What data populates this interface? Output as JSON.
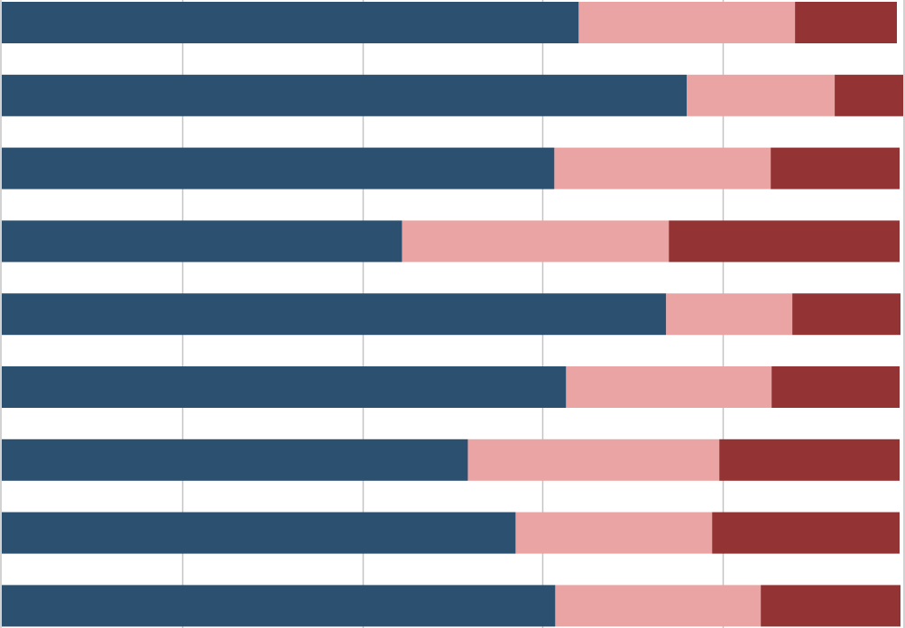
{
  "chart_data": {
    "type": "bar",
    "orientation": "horizontal",
    "stacked": true,
    "categories": [
      "",
      "",
      "",
      "",
      "",
      "",
      "",
      "",
      ""
    ],
    "series": [
      {
        "color": "#2b5070",
        "values": [
          64.0,
          76.0,
          61.3,
          44.4,
          73.7,
          62.6,
          51.7,
          57.0,
          61.4
        ]
      },
      {
        "color": "#eba4a4",
        "values": [
          24.0,
          16.4,
          24.0,
          29.6,
          14.0,
          22.8,
          27.9,
          21.8,
          22.8
        ]
      },
      {
        "color": "#943333",
        "values": [
          11.3,
          7.6,
          14.3,
          25.6,
          12.0,
          14.2,
          20.0,
          20.8,
          15.5
        ]
      }
    ],
    "xlim": [
      0,
      100
    ],
    "grid": true,
    "legend": "none"
  }
}
